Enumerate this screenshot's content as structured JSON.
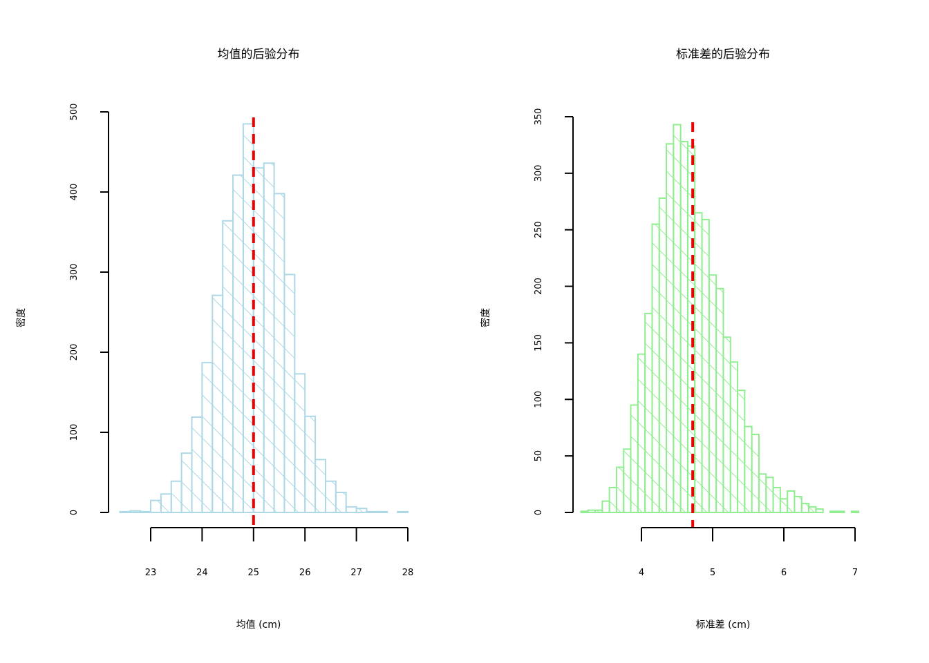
{
  "chart_data": [
    {
      "type": "bar",
      "title": "均值的后验分布",
      "xlabel": "均值 (cm)",
      "ylabel": "密度",
      "xlim": [
        22.4,
        28.0
      ],
      "ylim": [
        0,
        500
      ],
      "x_ticks": [
        23,
        24,
        25,
        26,
        27,
        28
      ],
      "y_ticks": [
        0,
        100,
        200,
        300,
        400,
        500
      ],
      "bin_width": 0.2,
      "bins_start": 22.4,
      "values": [
        1,
        2,
        1,
        15,
        23,
        39,
        74,
        119,
        187,
        271,
        364,
        421,
        485,
        430,
        436,
        398,
        297,
        173,
        120,
        66,
        39,
        25,
        7,
        5,
        1,
        1,
        0,
        1
      ],
      "reference_line": {
        "x": 25.0,
        "style": "dashed",
        "color": "#ee0000"
      },
      "bar_color": "#add8e6",
      "hatch": "diagonal",
      "grid": false
    },
    {
      "type": "bar",
      "title": "标准差的后验分布",
      "xlabel": "标准差 (cm)",
      "ylabel": "密度",
      "xlim": [
        3.15,
        7.05
      ],
      "ylim": [
        0,
        350
      ],
      "x_ticks": [
        4,
        5,
        6,
        7
      ],
      "y_ticks": [
        0,
        50,
        100,
        150,
        200,
        250,
        300,
        350
      ],
      "bin_width": 0.1,
      "bins_start": 3.15,
      "values": [
        1,
        2,
        2,
        10,
        22,
        40,
        56,
        95,
        140,
        176,
        255,
        278,
        326,
        343,
        328,
        324,
        265,
        259,
        210,
        198,
        155,
        133,
        108,
        76,
        69,
        34,
        31,
        22,
        12,
        19,
        14,
        8,
        5,
        3,
        0,
        1,
        1,
        0,
        1
      ],
      "reference_line": {
        "x": 4.72,
        "style": "dashed",
        "color": "#ee0000"
      },
      "bar_color": "#90ee90",
      "hatch": "diagonal",
      "grid": false
    }
  ]
}
